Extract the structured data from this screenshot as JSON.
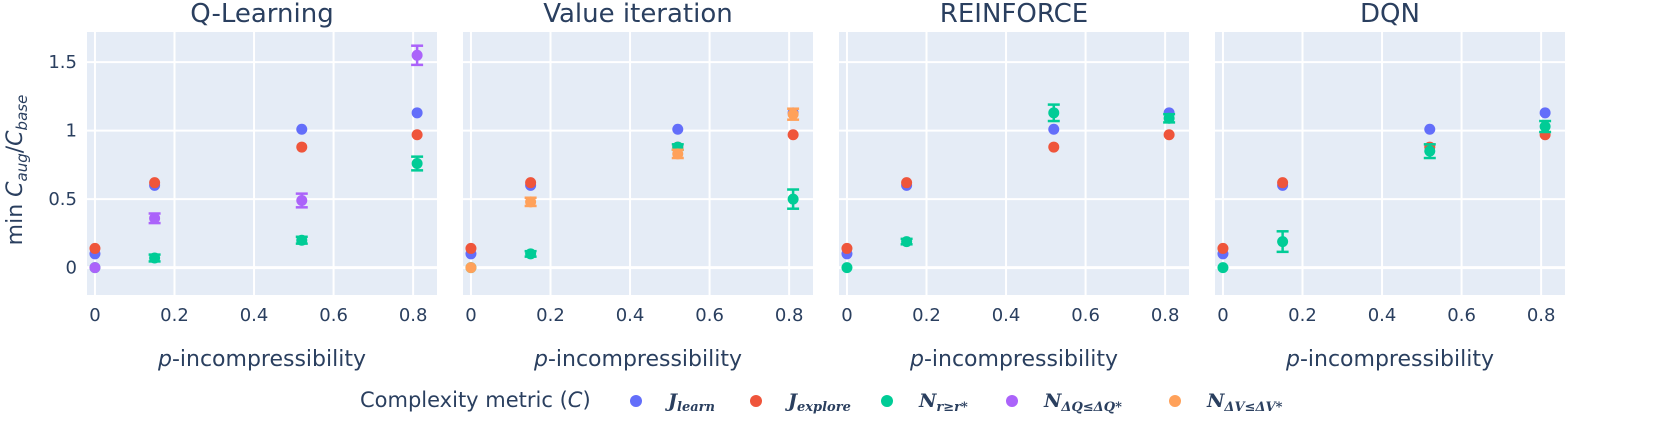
{
  "chart_data": {
    "type": "scatter",
    "ylabel": "min C_aug/C_base",
    "ylabel_parts": [
      "min ",
      "C",
      "aug",
      "/",
      "C",
      "base"
    ],
    "xlabel_italic": "p",
    "xlabel_rest": "-incompressibility",
    "xlim": [
      -0.02,
      0.86
    ],
    "ylim": [
      -0.2,
      1.72
    ],
    "x_ticks": [
      0,
      0.2,
      0.4,
      0.6,
      0.8
    ],
    "x_tick_labels": [
      "0",
      "0.2",
      "0.4",
      "0.6",
      "0.8"
    ],
    "y_ticks": [
      0,
      0.5,
      1,
      1.5
    ],
    "y_tick_labels": [
      "0",
      "0.5",
      "1",
      "1.5"
    ],
    "legend": {
      "title": "Complexity metric (C)",
      "entries": [
        {
          "name": "J_learn",
          "base": "J",
          "sub": "learn",
          "color": "#636efa"
        },
        {
          "name": "J_explore",
          "base": "J",
          "sub": "explore",
          "color": "#ef553b"
        },
        {
          "name": "N_r≥r*",
          "base": "N",
          "sub": "r≥r*",
          "color": "#00cc96"
        },
        {
          "name": "N_ΔQ≤ΔQ*",
          "base": "N",
          "sub": "ΔQ≤ΔQ*",
          "color": "#ab63fa"
        },
        {
          "name": "N_ΔV≤ΔV*",
          "base": "N",
          "sub": "ΔV≤ΔV*",
          "color": "#ffa15a"
        }
      ]
    },
    "panels": [
      {
        "title": "Q-Learning",
        "series": [
          {
            "name": "J_learn",
            "color": "#636efa",
            "x": [
              0,
              0.15,
              0.52,
              0.81
            ],
            "y": [
              0.1,
              0.6,
              1.01,
              1.13
            ],
            "err": [
              0,
              0,
              0,
              0
            ]
          },
          {
            "name": "J_explore",
            "color": "#ef553b",
            "x": [
              0,
              0.15,
              0.52,
              0.81
            ],
            "y": [
              0.14,
              0.62,
              0.88,
              0.97
            ],
            "err": [
              0,
              0,
              0,
              0
            ]
          },
          {
            "name": "N_r≥r*",
            "color": "#00cc96",
            "x": [
              0,
              0.15,
              0.52,
              0.81
            ],
            "y": [
              0,
              0.07,
              0.2,
              0.76
            ],
            "err": [
              0,
              0.025,
              0.025,
              0.05
            ]
          },
          {
            "name": "N_ΔQ≤ΔQ*",
            "color": "#ab63fa",
            "x": [
              0,
              0.15,
              0.52,
              0.81
            ],
            "y": [
              0,
              0.36,
              0.49,
              1.55
            ],
            "err": [
              0,
              0.035,
              0.05,
              0.07
            ]
          }
        ]
      },
      {
        "title": "Value iteration",
        "series": [
          {
            "name": "J_learn",
            "color": "#636efa",
            "x": [
              0,
              0.15,
              0.52,
              0.81
            ],
            "y": [
              0.1,
              0.6,
              1.01,
              1.13
            ],
            "err": [
              0,
              0,
              0,
              0
            ]
          },
          {
            "name": "J_explore",
            "color": "#ef553b",
            "x": [
              0,
              0.15,
              0.52,
              0.81
            ],
            "y": [
              0.14,
              0.62,
              0.88,
              0.97
            ],
            "err": [
              0,
              0,
              0,
              0
            ]
          },
          {
            "name": "N_r≥r*",
            "color": "#00cc96",
            "x": [
              0,
              0.15,
              0.52,
              0.81
            ],
            "y": [
              0,
              0.1,
              0.88,
              0.5
            ],
            "err": [
              0,
              0.02,
              0.02,
              0.07
            ]
          },
          {
            "name": "N_ΔV≤ΔV*",
            "color": "#ffa15a",
            "x": [
              0,
              0.15,
              0.52,
              0.81
            ],
            "y": [
              0,
              0.48,
              0.83,
              1.12
            ],
            "err": [
              0,
              0.03,
              0.03,
              0.04
            ]
          }
        ]
      },
      {
        "title": "REINFORCE",
        "series": [
          {
            "name": "J_learn",
            "color": "#636efa",
            "x": [
              0,
              0.15,
              0.52,
              0.81
            ],
            "y": [
              0.1,
              0.6,
              1.01,
              1.13
            ],
            "err": [
              0,
              0,
              0,
              0
            ]
          },
          {
            "name": "J_explore",
            "color": "#ef553b",
            "x": [
              0,
              0.15,
              0.52,
              0.81
            ],
            "y": [
              0.14,
              0.62,
              0.88,
              0.97
            ],
            "err": [
              0,
              0,
              0,
              0
            ]
          },
          {
            "name": "N_r≥r*",
            "color": "#00cc96",
            "x": [
              0,
              0.15,
              0.52,
              0.81
            ],
            "y": [
              0,
              0.19,
              1.13,
              1.09
            ],
            "err": [
              0,
              0.02,
              0.06,
              0.03
            ]
          }
        ]
      },
      {
        "title": "DQN",
        "series": [
          {
            "name": "J_learn",
            "color": "#636efa",
            "x": [
              0,
              0.15,
              0.52,
              0.81
            ],
            "y": [
              0.1,
              0.6,
              1.01,
              1.13
            ],
            "err": [
              0,
              0,
              0,
              0
            ]
          },
          {
            "name": "J_explore",
            "color": "#ef553b",
            "x": [
              0,
              0.15,
              0.52,
              0.81
            ],
            "y": [
              0.14,
              0.62,
              0.88,
              0.97
            ],
            "err": [
              0,
              0,
              0,
              0
            ]
          },
          {
            "name": "N_r≥r*",
            "color": "#00cc96",
            "x": [
              0,
              0.15,
              0.52,
              0.81
            ],
            "y": [
              0,
              0.19,
              0.85,
              1.03
            ],
            "err": [
              0,
              0.075,
              0.05,
              0.04
            ]
          }
        ]
      }
    ]
  }
}
